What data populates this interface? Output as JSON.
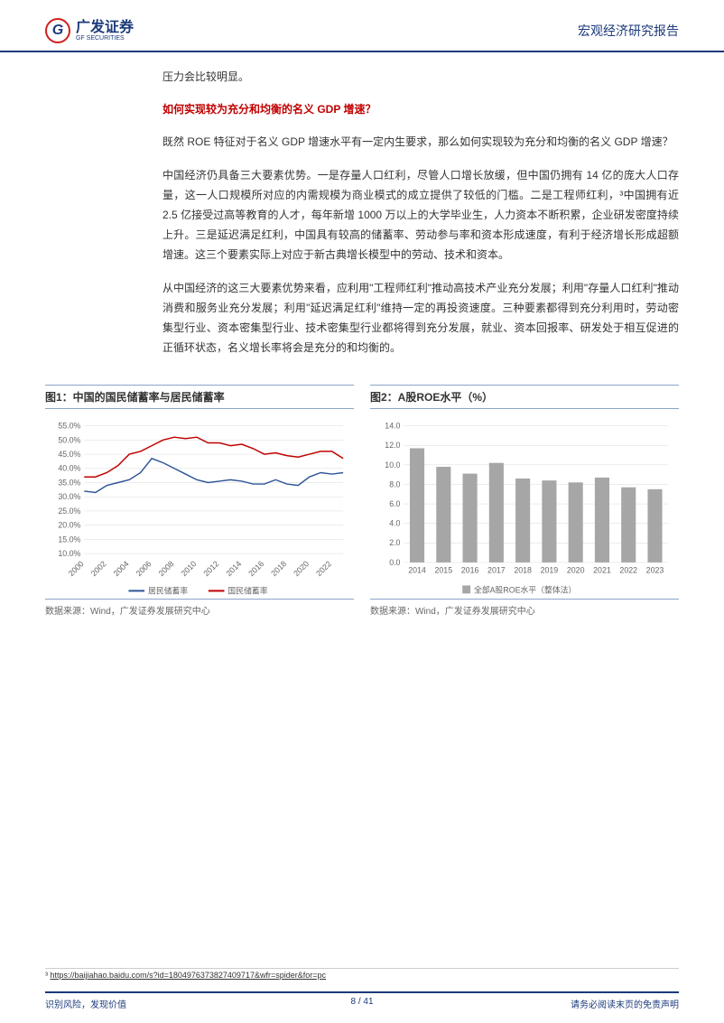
{
  "header": {
    "logo_cn": "广发证券",
    "logo_en": "GF SECURITIES",
    "title": "宏观经济研究报告"
  },
  "body": {
    "p0": "压力会比较明显。",
    "h1": "如何实现较为充分和均衡的名义 GDP 增速？",
    "p1": "既然 ROE 特征对于名义 GDP 增速水平有一定内生要求，那么如何实现较为充分和均衡的名义 GDP 增速？",
    "p2": "中国经济仍具备三大要素优势。一是存量人口红利，尽管人口增长放缓，但中国仍拥有 14 亿的庞大人口存量，这一人口规模所对应的内需规模为商业模式的成立提供了较低的门槛。二是工程师红利，³中国拥有近 2.5 亿接受过高等教育的人才，每年新增 1000 万以上的大学毕业生，人力资本不断积累，企业研发密度持续上升。三是延迟满足红利，中国具有较高的储蓄率、劳动参与率和资本形成速度，有利于经济增长形成超额增速。这三个要素实际上对应于新古典增长模型中的劳动、技术和资本。",
    "p3": "从中国经济的这三大要素优势来看，应利用\"工程师红利\"推动高技术产业充分发展；利用\"存量人口红利\"推动消费和服务业充分发展；利用\"延迟满足红利\"维持一定的再投资速度。三种要素都得到充分利用时，劳动密集型行业、资本密集型行业、技术密集型行业都将得到充分发展，就业、资本回报率、研发处于相互促进的正循环状态，名义增长率将会是充分的和均衡的。"
  },
  "chart1": {
    "type": "line",
    "title": "图1：中国的国民储蓄率与居民储蓄率",
    "source": "数据来源：Wind，广发证券发展研究中心",
    "y_ticks": [
      "10.0%",
      "15.0%",
      "20.0%",
      "25.0%",
      "30.0%",
      "35.0%",
      "40.0%",
      "45.0%",
      "50.0%",
      "55.0%"
    ],
    "y_min": 10,
    "y_max": 55,
    "y_step": 5,
    "x_labels": [
      "2000",
      "2002",
      "2004",
      "2006",
      "2008",
      "2010",
      "2012",
      "2014",
      "2016",
      "2018",
      "2020",
      "2022"
    ],
    "series": [
      {
        "name": "居民储蓄率",
        "color": "#2f5597",
        "values": [
          32,
          31.5,
          34,
          35,
          36,
          38.5,
          43.5,
          42,
          40,
          38,
          36,
          35,
          35.5,
          36,
          35.5,
          34.5,
          34.5,
          36,
          34.5,
          34,
          37,
          38.5,
          38,
          38.5
        ]
      },
      {
        "name": "国民储蓄率",
        "color": "#c00000",
        "values": [
          37,
          37,
          38.5,
          41,
          45,
          46,
          48,
          50,
          51,
          50.5,
          51,
          49,
          49,
          48,
          48.5,
          47,
          45,
          45.5,
          44.5,
          44,
          45,
          46,
          46,
          43.5
        ]
      }
    ],
    "legend": [
      {
        "label": "居民储蓄率",
        "color": "#2f5597"
      },
      {
        "label": "国民储蓄率",
        "color": "#c00000"
      }
    ],
    "grid_color": "#d9d9d9",
    "background": "#ffffff"
  },
  "chart2": {
    "type": "bar",
    "title": "图2：A股ROE水平（%）",
    "source": "数据来源：Wind，广发证券发展研究中心",
    "y_ticks": [
      "0.0",
      "2.0",
      "4.0",
      "6.0",
      "8.0",
      "10.0",
      "12.0",
      "14.0"
    ],
    "y_min": 0,
    "y_max": 14,
    "y_step": 2,
    "x_labels": [
      "2014",
      "2015",
      "2016",
      "2017",
      "2018",
      "2019",
      "2020",
      "2021",
      "2022",
      "2023"
    ],
    "values": [
      11.7,
      9.8,
      9.1,
      10.2,
      8.6,
      8.4,
      8.2,
      8.7,
      7.7,
      7.5
    ],
    "bar_color": "#a6a6a6",
    "legend_label": "全部A股ROE水平（整体法）",
    "grid_color": "#d9d9d9",
    "background": "#ffffff"
  },
  "footnote": {
    "marker": "³",
    "url": "https://baijiahao.baidu.com/s?id=1804976373827409717&wfr=spider&for=pc"
  },
  "footer": {
    "left": "识别风险，发现价值",
    "right": "请务必阅读末页的免责声明",
    "page": "8 / 41"
  }
}
